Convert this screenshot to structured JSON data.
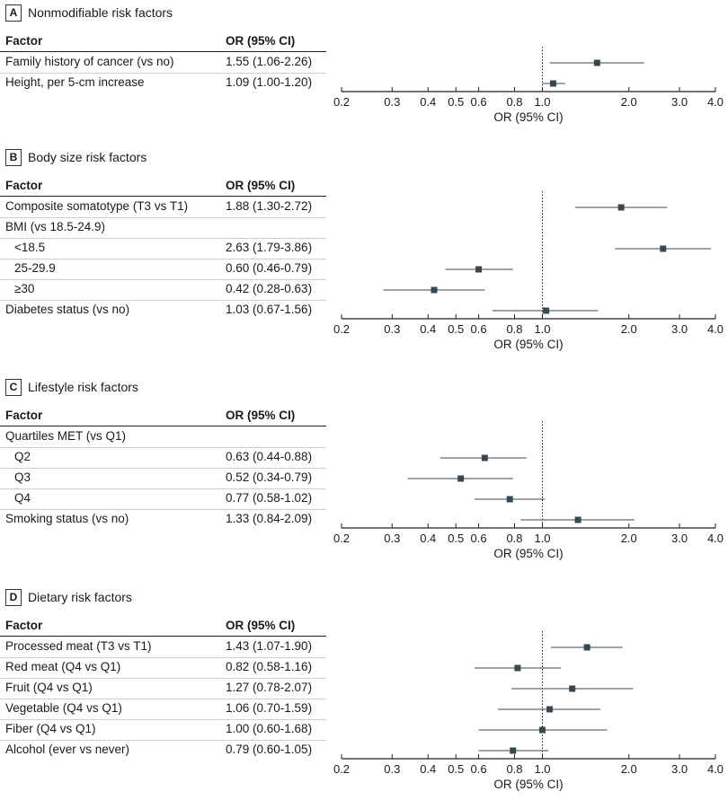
{
  "colors": {
    "marker": "#37474f",
    "ci_line": "#37474f",
    "axis": "#222222",
    "null_line": "#222222"
  },
  "chart_data": [
    {
      "type": "forest",
      "panel": "A",
      "title": "Nonmodifiable risk factors",
      "col_factor": "Factor",
      "col_or": "OR (95% CI)",
      "xlabel": "OR (95% CI)",
      "xscale": "log",
      "xlim": [
        0.2,
        4.0
      ],
      "ticks": [
        "0.2",
        "0.3",
        "0.4",
        "0.5",
        "0.6",
        "0.8",
        "1.0",
        "2.0",
        "3.0",
        "4.0"
      ],
      "reference": 1.0,
      "rows": [
        {
          "factor": "Family history of cancer (vs no)",
          "or_text": "1.55 (1.06-2.26)",
          "or": 1.55,
          "lo": 1.06,
          "hi": 2.26
        },
        {
          "factor": "Height, per 5-cm increase",
          "or_text": "1.09 (1.00-1.20)",
          "or": 1.09,
          "lo": 1.0,
          "hi": 1.2
        }
      ]
    },
    {
      "type": "forest",
      "panel": "B",
      "title": "Body size risk factors",
      "col_factor": "Factor",
      "col_or": "OR (95% CI)",
      "xlabel": "OR (95% CI)",
      "xscale": "log",
      "xlim": [
        0.2,
        4.0
      ],
      "ticks": [
        "0.2",
        "0.3",
        "0.4",
        "0.5",
        "0.6",
        "0.8",
        "1.0",
        "2.0",
        "3.0",
        "4.0"
      ],
      "reference": 1.0,
      "rows": [
        {
          "factor": "Composite somatotype (T3 vs T1)",
          "or_text": "1.88 (1.30-2.72)",
          "or": 1.88,
          "lo": 1.3,
          "hi": 2.72
        },
        {
          "factor": "BMI (vs 18.5-24.9)",
          "or_text": "",
          "header": true
        },
        {
          "factor": "<18.5",
          "or_text": "2.63 (1.79-3.86)",
          "or": 2.63,
          "lo": 1.79,
          "hi": 3.86,
          "indent": true
        },
        {
          "factor": "25-29.9",
          "or_text": "0.60 (0.46-0.79)",
          "or": 0.6,
          "lo": 0.46,
          "hi": 0.79,
          "indent": true
        },
        {
          "factor": "≥30",
          "or_text": "0.42 (0.28-0.63)",
          "or": 0.42,
          "lo": 0.28,
          "hi": 0.63,
          "indent": true
        },
        {
          "factor": "Diabetes status (vs no)",
          "or_text": "1.03 (0.67-1.56)",
          "or": 1.03,
          "lo": 0.67,
          "hi": 1.56
        }
      ]
    },
    {
      "type": "forest",
      "panel": "C",
      "title": "Lifestyle risk factors",
      "col_factor": "Factor",
      "col_or": "OR (95% CI)",
      "xlabel": "OR (95% CI)",
      "xscale": "log",
      "xlim": [
        0.2,
        4.0
      ],
      "ticks": [
        "0.2",
        "0.3",
        "0.4",
        "0.5",
        "0.6",
        "0.8",
        "1.0",
        "2.0",
        "3.0",
        "4.0"
      ],
      "reference": 1.0,
      "rows": [
        {
          "factor": "Quartiles MET (vs Q1)",
          "or_text": "",
          "header": true
        },
        {
          "factor": "Q2",
          "or_text": "0.63 (0.44-0.88)",
          "or": 0.63,
          "lo": 0.44,
          "hi": 0.88,
          "indent": true
        },
        {
          "factor": "Q3",
          "or_text": "0.52 (0.34-0.79)",
          "or": 0.52,
          "lo": 0.34,
          "hi": 0.79,
          "indent": true
        },
        {
          "factor": "Q4",
          "or_text": "0.77 (0.58-1.02)",
          "or": 0.77,
          "lo": 0.58,
          "hi": 1.02,
          "indent": true
        },
        {
          "factor": "Smoking status (vs no)",
          "or_text": "1.33 (0.84-2.09)",
          "or": 1.33,
          "lo": 0.84,
          "hi": 2.09
        }
      ]
    },
    {
      "type": "forest",
      "panel": "D",
      "title": "Dietary risk factors",
      "col_factor": "Factor",
      "col_or": "OR (95% CI)",
      "xlabel": "OR (95% CI)",
      "xscale": "log",
      "xlim": [
        0.2,
        4.0
      ],
      "ticks": [
        "0.2",
        "0.3",
        "0.4",
        "0.5",
        "0.6",
        "0.8",
        "1.0",
        "2.0",
        "3.0",
        "4.0"
      ],
      "reference": 1.0,
      "rows": [
        {
          "factor": "Processed meat (T3 vs T1)",
          "or_text": "1.43 (1.07-1.90)",
          "or": 1.43,
          "lo": 1.07,
          "hi": 1.9
        },
        {
          "factor": "Red meat (Q4 vs Q1)",
          "or_text": "0.82 (0.58-1.16)",
          "or": 0.82,
          "lo": 0.58,
          "hi": 1.16
        },
        {
          "factor": "Fruit (Q4 vs Q1)",
          "or_text": "1.27 (0.78-2.07)",
          "or": 1.27,
          "lo": 0.78,
          "hi": 2.07
        },
        {
          "factor": "Vegetable (Q4 vs Q1)",
          "or_text": "1.06 (0.70-1.59)",
          "or": 1.06,
          "lo": 0.7,
          "hi": 1.59
        },
        {
          "factor": "Fiber (Q4 vs Q1)",
          "or_text": "1.00 (0.60-1.68)",
          "or": 1.0,
          "lo": 0.6,
          "hi": 1.68
        },
        {
          "factor": "Alcohol (ever vs never)",
          "or_text": "0.79 (0.60-1.05)",
          "or": 0.79,
          "lo": 0.6,
          "hi": 1.05
        }
      ]
    }
  ]
}
